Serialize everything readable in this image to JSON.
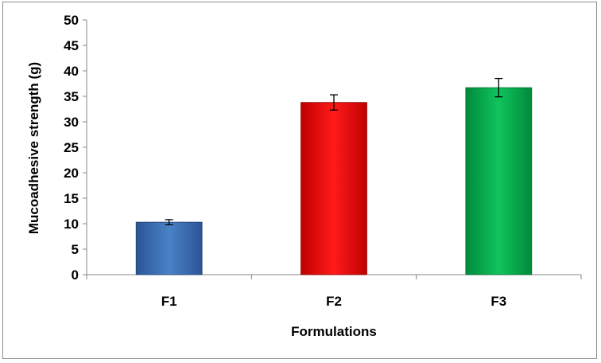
{
  "chart_data": {
    "type": "bar",
    "title": "",
    "xlabel": "Formulations",
    "ylabel": "Mucoadhesive strength (g)",
    "categories": [
      "F1",
      "F2",
      "F3"
    ],
    "values": [
      10.3,
      33.8,
      36.7
    ],
    "errors": [
      0.5,
      1.5,
      1.8
    ],
    "ylim": [
      0,
      50
    ],
    "yticks": [
      0,
      5,
      10,
      15,
      20,
      25,
      30,
      35,
      40,
      45,
      50
    ],
    "bar_colors": [
      "#3b6fb6",
      "#ff0000",
      "#00b050"
    ],
    "grid": false,
    "legend": "none"
  }
}
